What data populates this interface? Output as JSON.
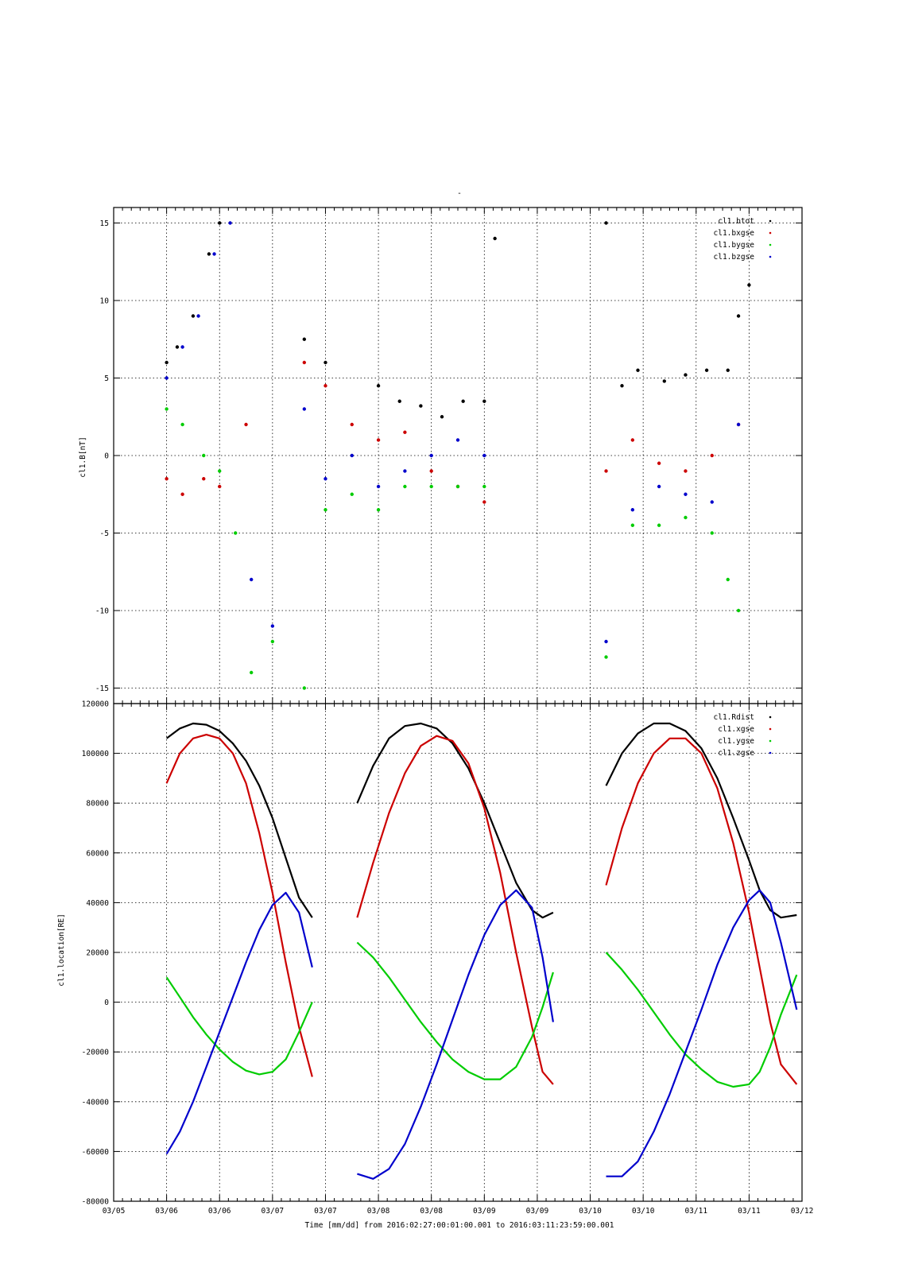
{
  "figure": {
    "top_mark": "-",
    "xlabel": "Time [mm/dd]  from 2016:02:27:00:01:00.001  to  2016:03:11:23:59:00.001",
    "x_tick_labels": [
      "03/05",
      "03/06",
      "03/06",
      "03/07",
      "03/07",
      "03/08",
      "03/08",
      "03/09",
      "03/09",
      "03/10",
      "03/10",
      "03/11",
      "03/11",
      "03/12"
    ],
    "series_colors": {
      "cl1.btot": "#000000",
      "cl1.bxgse": "#cc0000",
      "cl1.bygse": "#00cc00",
      "cl1.bzgse": "#0000cc",
      "cl1.Rdist": "#000000",
      "cl1.xgse": "#cc0000",
      "cl1.ygse": "#00cc00",
      "cl1.zgse": "#0000cc"
    }
  },
  "chart_data": [
    {
      "type": "scatter",
      "ylabel": "cl1.B[nT]",
      "ylim": [
        -16,
        16
      ],
      "y_ticks": [
        -15,
        -10,
        -5,
        0,
        5,
        10,
        15
      ],
      "xlim": [
        0,
        13
      ],
      "grid": true,
      "legend_position": "top-right",
      "series": [
        {
          "name": "cl1.btot",
          "color": "#000000",
          "x": [
            1,
            1.2,
            1.5,
            1.8,
            2.0,
            3.6,
            4.0,
            5.0,
            5.4,
            5.8,
            6.2,
            6.6,
            7.0,
            7.2,
            9.3,
            9.6,
            9.9,
            10.4,
            10.8,
            11.2,
            11.6,
            11.8,
            12.0
          ],
          "y": [
            6,
            7,
            9,
            13,
            15,
            7.5,
            6,
            4.5,
            3.5,
            3.2,
            2.5,
            3.5,
            3.5,
            14,
            15,
            4.5,
            5.5,
            4.8,
            5.2,
            5.5,
            5.5,
            9,
            11
          ]
        },
        {
          "name": "cl1.bxgse",
          "color": "#cc0000",
          "x": [
            1,
            1.3,
            1.7,
            2.0,
            2.5,
            3.6,
            4.0,
            4.5,
            5.0,
            5.5,
            6.0,
            6.5,
            7.0,
            9.3,
            9.8,
            10.3,
            10.8,
            11.3,
            11.8
          ],
          "y": [
            -1.5,
            -2.5,
            -1.5,
            -2,
            2,
            6,
            4.5,
            2,
            1,
            1.5,
            -1,
            -2,
            -3,
            -1,
            1,
            -0.5,
            -1,
            0,
            2
          ]
        },
        {
          "name": "cl1.bygse",
          "color": "#00cc00",
          "x": [
            1,
            1.3,
            1.7,
            2.0,
            2.3,
            2.6,
            3.0,
            3.6,
            4.0,
            4.5,
            5.0,
            5.5,
            6.0,
            6.5,
            7.0,
            9.3,
            9.8,
            10.3,
            10.8,
            11.3,
            11.6,
            11.8
          ],
          "y": [
            3,
            2,
            0,
            -1,
            -5,
            -14,
            -12,
            -15,
            -3.5,
            -2.5,
            -3.5,
            -2,
            -2,
            -2,
            -2,
            -13,
            -4.5,
            -4.5,
            -4,
            -5,
            -8,
            -10
          ]
        },
        {
          "name": "cl1.bzgse",
          "color": "#0000cc",
          "x": [
            1,
            1.3,
            1.6,
            1.9,
            2.2,
            2.6,
            3.0,
            3.6,
            4.0,
            4.5,
            5.0,
            5.5,
            6.0,
            6.5,
            7.0,
            9.3,
            9.8,
            10.3,
            10.8,
            11.3,
            11.8
          ],
          "y": [
            5,
            7,
            9,
            13,
            15,
            -8,
            -11,
            3,
            -1.5,
            0,
            -2,
            -1,
            0,
            1,
            0,
            -12,
            -3.5,
            -2,
            -2.5,
            -3,
            2
          ]
        }
      ]
    },
    {
      "type": "line",
      "ylabel": "cl1.location[RE]",
      "ylim": [
        -80000,
        120000
      ],
      "y_ticks": [
        -80000,
        -60000,
        -40000,
        -20000,
        0,
        20000,
        40000,
        60000,
        80000,
        100000,
        120000
      ],
      "xlim": [
        0,
        13
      ],
      "grid": true,
      "legend_position": "top-right",
      "series": [
        {
          "name": "cl1.Rdist",
          "color": "#000000",
          "segments": [
            {
              "x": [
                1,
                1.25,
                1.5,
                1.75,
                2.0,
                2.25,
                2.5,
                2.75,
                3.0,
                3.25,
                3.5,
                3.75
              ],
              "y": [
                106000,
                110000,
                112000,
                111500,
                109000,
                104000,
                97000,
                87000,
                74000,
                58000,
                42000,
                34000
              ]
            },
            {
              "x": [
                4.6,
                4.9,
                5.2,
                5.5,
                5.8,
                6.1,
                6.4,
                6.7,
                7.0,
                7.3,
                7.6,
                7.9,
                8.1,
                8.3
              ],
              "y": [
                80000,
                95000,
                106000,
                111000,
                112000,
                110000,
                104000,
                94000,
                80000,
                64000,
                48000,
                37000,
                34000,
                36000
              ]
            },
            {
              "x": [
                9.3,
                9.6,
                9.9,
                10.2,
                10.5,
                10.8,
                11.1,
                11.4,
                11.7,
                12.0,
                12.2,
                12.4,
                12.6,
                12.9
              ],
              "y": [
                87000,
                100000,
                108000,
                112000,
                112000,
                109000,
                102000,
                90000,
                74000,
                57000,
                45000,
                37000,
                34000,
                35000
              ]
            }
          ]
        },
        {
          "name": "cl1.xgse",
          "color": "#cc0000",
          "segments": [
            {
              "x": [
                1,
                1.25,
                1.5,
                1.75,
                2.0,
                2.25,
                2.5,
                2.75,
                3.0,
                3.25,
                3.5,
                3.75
              ],
              "y": [
                88000,
                100000,
                106000,
                107500,
                106000,
                100000,
                88000,
                68000,
                44000,
                16000,
                -10000,
                -30000
              ]
            },
            {
              "x": [
                4.6,
                4.9,
                5.2,
                5.5,
                5.8,
                6.1,
                6.4,
                6.7,
                7.0,
                7.3,
                7.6,
                7.9,
                8.1,
                8.3
              ],
              "y": [
                34000,
                56000,
                76000,
                92000,
                103000,
                107000,
                105000,
                96000,
                78000,
                52000,
                20000,
                -10000,
                -28000,
                -33000
              ]
            },
            {
              "x": [
                9.3,
                9.6,
                9.9,
                10.2,
                10.5,
                10.8,
                11.1,
                11.4,
                11.7,
                12.0,
                12.2,
                12.4,
                12.6,
                12.9
              ],
              "y": [
                47000,
                70000,
                88000,
                100000,
                106000,
                106000,
                100000,
                86000,
                64000,
                36000,
                14000,
                -8000,
                -25000,
                -33000
              ]
            }
          ]
        },
        {
          "name": "cl1.ygse",
          "color": "#00cc00",
          "segments": [
            {
              "x": [
                1,
                1.25,
                1.5,
                1.75,
                2.0,
                2.25,
                2.5,
                2.75,
                3.0,
                3.25,
                3.5,
                3.75
              ],
              "y": [
                10000,
                2000,
                -6000,
                -13000,
                -19000,
                -24000,
                -27500,
                -29000,
                -28000,
                -23000,
                -12000,
                0
              ]
            },
            {
              "x": [
                4.6,
                4.9,
                5.2,
                5.5,
                5.8,
                6.1,
                6.4,
                6.7,
                7.0,
                7.3,
                7.6,
                7.9,
                8.1,
                8.3
              ],
              "y": [
                24000,
                18000,
                10000,
                1000,
                -8000,
                -16000,
                -23000,
                -28000,
                -31000,
                -31000,
                -26000,
                -14000,
                -2000,
                12000
              ]
            },
            {
              "x": [
                9.3,
                9.6,
                9.9,
                10.2,
                10.5,
                10.8,
                11.1,
                11.4,
                11.7,
                12.0,
                12.2,
                12.4,
                12.6,
                12.9
              ],
              "y": [
                20000,
                13000,
                5000,
                -4000,
                -13000,
                -21000,
                -27000,
                -32000,
                -34000,
                -33000,
                -28000,
                -18000,
                -5000,
                11000
              ]
            }
          ]
        },
        {
          "name": "cl1.zgse",
          "color": "#0000cc",
          "segments": [
            {
              "x": [
                1,
                1.25,
                1.5,
                1.75,
                2.0,
                2.25,
                2.5,
                2.75,
                3.0,
                3.25,
                3.5,
                3.75
              ],
              "y": [
                -61000,
                -52000,
                -40000,
                -26000,
                -12000,
                2000,
                16000,
                29000,
                39000,
                44000,
                36000,
                14000
              ]
            },
            {
              "x": [
                4.6,
                4.9,
                5.2,
                5.5,
                5.8,
                6.1,
                6.4,
                6.7,
                7.0,
                7.3,
                7.6,
                7.9,
                8.1,
                8.3
              ],
              "y": [
                -69000,
                -71000,
                -67000,
                -57000,
                -42000,
                -25000,
                -7000,
                11000,
                27000,
                39000,
                45000,
                38000,
                18000,
                -8000
              ]
            },
            {
              "x": [
                9.3,
                9.6,
                9.9,
                10.2,
                10.5,
                10.8,
                11.1,
                11.4,
                11.7,
                12.0,
                12.2,
                12.4,
                12.6,
                12.9
              ],
              "y": [
                -70000,
                -70000,
                -64000,
                -52000,
                -37000,
                -20000,
                -3000,
                15000,
                30000,
                41000,
                45000,
                40000,
                24000,
                -3000
              ]
            }
          ]
        }
      ]
    }
  ]
}
